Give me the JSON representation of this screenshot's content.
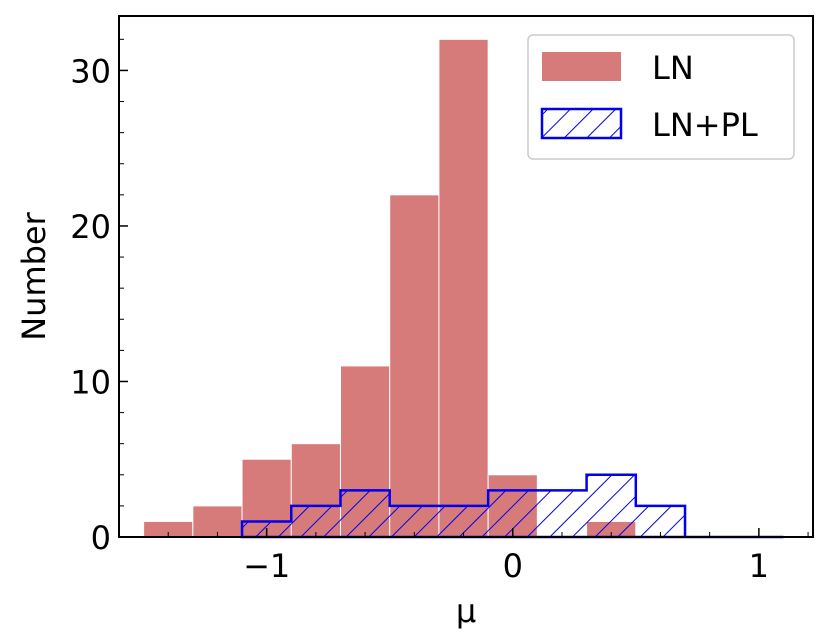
{
  "chart_data": {
    "type": "bar",
    "title": "",
    "xlabel": "μ",
    "ylabel": "Number",
    "xlim": [
      -1.6,
      1.22
    ],
    "ylim": [
      0,
      33.5
    ],
    "bin_edges": [
      -1.5,
      -1.3,
      -1.1,
      -0.9,
      -0.7,
      -0.5,
      -0.3,
      -0.1,
      0.1,
      0.3,
      0.5,
      0.7,
      0.9,
      1.1
    ],
    "x_ticks": [
      {
        "value": -1,
        "label": "−1"
      },
      {
        "value": 0,
        "label": "0"
      },
      {
        "value": 1,
        "label": "1"
      }
    ],
    "y_ticks": [
      {
        "value": 0,
        "label": "0"
      },
      {
        "value": 10,
        "label": "10"
      },
      {
        "value": 20,
        "label": "20"
      },
      {
        "value": 30,
        "label": "30"
      }
    ],
    "grid": false,
    "legend_position": "top-right",
    "series": [
      {
        "name": "LN",
        "style": "filled",
        "color": "#d67b7a",
        "values": [
          1,
          2,
          5,
          6,
          11,
          22,
          32,
          4,
          0,
          1,
          0,
          0,
          0
        ]
      },
      {
        "name": "LN+PL",
        "style": "hatched-step",
        "color": "#0000ee",
        "values": [
          0,
          0,
          1,
          2,
          3,
          2,
          2,
          3,
          3,
          4,
          2,
          0,
          0
        ]
      }
    ]
  }
}
